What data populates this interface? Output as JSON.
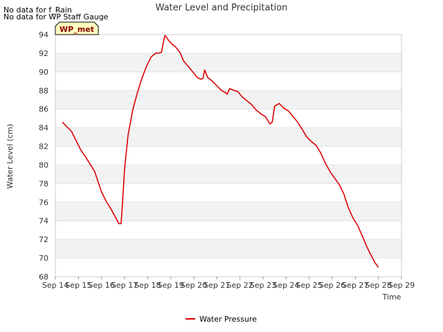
{
  "notes": [
    "No data for f_Rain",
    "No data for WP Staff Gauge"
  ],
  "badge": "WP_met",
  "colors": {
    "series": "#dd0000",
    "band": "#f2f2f2",
    "badge_fill": "#ffffc0"
  },
  "chart_data": {
    "type": "line",
    "title": "Water Level and Precipitation",
    "xlabel": "Time",
    "ylabel": "Water Level (cm)",
    "ylim": [
      68,
      94
    ],
    "yticks": [
      68,
      70,
      72,
      74,
      76,
      78,
      80,
      82,
      84,
      86,
      88,
      90,
      92,
      94
    ],
    "xlim": [
      14,
      29
    ],
    "xticks": [
      {
        "x": 14,
        "label": "Sep 14"
      },
      {
        "x": 15,
        "label": "Sep 15"
      },
      {
        "x": 16,
        "label": "Sep 16"
      },
      {
        "x": 17,
        "label": "Sep 17"
      },
      {
        "x": 18,
        "label": "Sep 18"
      },
      {
        "x": 19,
        "label": "Sep 19"
      },
      {
        "x": 20,
        "label": "Sep 20"
      },
      {
        "x": 21,
        "label": "Sep 21"
      },
      {
        "x": 22,
        "label": "Sep 22"
      },
      {
        "x": 23,
        "label": "Sep 23"
      },
      {
        "x": 24,
        "label": "Sep 24"
      },
      {
        "x": 25,
        "label": "Sep 25"
      },
      {
        "x": 26,
        "label": "Sep 26"
      },
      {
        "x": 27,
        "label": "Sep 27"
      },
      {
        "x": 28,
        "label": "Sep 28"
      },
      {
        "x": 29,
        "label": "Sep 29"
      }
    ],
    "grid": true,
    "legend_position": "bottom-center",
    "series": [
      {
        "name": "Water Pressure",
        "x": [
          14.3,
          14.5,
          14.7,
          14.9,
          15.1,
          15.3,
          15.5,
          15.7,
          15.85,
          16.0,
          16.2,
          16.4,
          16.6,
          16.75,
          16.85,
          16.92,
          17.0,
          17.15,
          17.35,
          17.55,
          17.75,
          17.95,
          18.15,
          18.35,
          18.45,
          18.6,
          18.7,
          18.75,
          18.82,
          18.9,
          19.05,
          19.2,
          19.4,
          19.55,
          19.75,
          19.95,
          20.15,
          20.3,
          20.4,
          20.47,
          20.6,
          20.8,
          21.0,
          21.2,
          21.35,
          21.45,
          21.55,
          21.75,
          21.9,
          22.1,
          22.3,
          22.5,
          22.7,
          22.9,
          23.1,
          23.2,
          23.3,
          23.4,
          23.5,
          23.7,
          23.9,
          24.1,
          24.3,
          24.5,
          24.7,
          24.9,
          25.1,
          25.3,
          25.5,
          25.7,
          25.9,
          26.1,
          26.3,
          26.5,
          26.7,
          26.9,
          27.1,
          27.3,
          27.5,
          27.7,
          27.85,
          28.0
        ],
        "values": [
          84.6,
          84.1,
          83.6,
          82.6,
          81.6,
          80.9,
          80.1,
          79.3,
          78.2,
          77.1,
          76.1,
          75.3,
          74.4,
          73.7,
          73.7,
          76.3,
          79.6,
          83.2,
          85.9,
          87.7,
          89.3,
          90.6,
          91.6,
          92.0,
          92.0,
          92.1,
          93.4,
          93.9,
          93.7,
          93.4,
          93.0,
          92.7,
          92.1,
          91.2,
          90.6,
          90.0,
          89.4,
          89.2,
          89.3,
          90.2,
          89.4,
          89.0,
          88.5,
          88.0,
          87.8,
          87.6,
          88.2,
          88.0,
          87.9,
          87.3,
          86.9,
          86.5,
          85.9,
          85.5,
          85.2,
          84.8,
          84.4,
          84.6,
          86.3,
          86.6,
          86.1,
          85.8,
          85.2,
          84.6,
          83.8,
          83.0,
          82.5,
          82.1,
          81.3,
          80.2,
          79.3,
          78.6,
          77.9,
          76.9,
          75.4,
          74.3,
          73.5,
          72.4,
          71.2,
          70.2,
          69.5,
          69.0
        ]
      }
    ]
  }
}
